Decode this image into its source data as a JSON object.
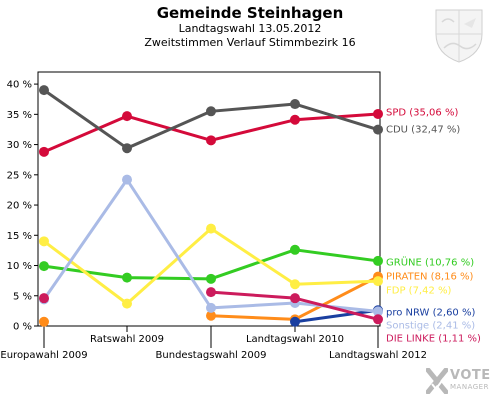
{
  "header": {
    "title": "Gemeinde Steinhagen",
    "subtitle": "Landtagswahl 13.05.2012",
    "subtitle2": "Zweitstimmen Verlauf Stimmbezirk 16"
  },
  "logo": {
    "text_main": "VOTE",
    "text_sub": "MANAGER",
    "icon": "x-check-logo-icon",
    "color": "#b8b8b8"
  },
  "crest": {
    "icon": "coat-of-arms-icon"
  },
  "chart_data": {
    "type": "line",
    "title": "Gemeinde Steinhagen",
    "x": [
      "Europawahl 2009",
      "Ratswahl 2009",
      "Bundestagswahl 2009",
      "Landtagswahl 2010",
      "Landtagswahl 2012"
    ],
    "y_ticks": [
      "0 %",
      "5 %",
      "10 %",
      "15 %",
      "20 %",
      "25 %",
      "30 %",
      "35 %",
      "40 %"
    ],
    "ylim": [
      0,
      42
    ],
    "grid": false,
    "legend": "right",
    "series": [
      {
        "name": "SPD (35,06 %)",
        "color": "#d40a3a",
        "values": [
          28.8,
          34.7,
          30.7,
          34.1,
          35.06
        ]
      },
      {
        "name": "CDU (32,47 %)",
        "color": "#555555",
        "values": [
          39.0,
          29.4,
          35.5,
          36.7,
          32.47
        ]
      },
      {
        "name": "GRÜNE (10,76 %)",
        "color": "#33cc22",
        "values": [
          9.9,
          8.0,
          7.8,
          12.6,
          10.76
        ]
      },
      {
        "name": "PIRATEN (8,16 %)",
        "color": "#ff8c1a",
        "values": [
          0.7,
          null,
          1.7,
          1.1,
          8.16
        ]
      },
      {
        "name": "FDP (7,42 %)",
        "color": "#ffee44",
        "values": [
          14.0,
          3.7,
          16.1,
          6.9,
          7.42
        ]
      },
      {
        "name": "pro NRW (2,60 %)",
        "color": "#1a3fa0",
        "values": [
          null,
          null,
          null,
          0.7,
          2.6
        ]
      },
      {
        "name": "Sonstige (2,41 %)",
        "color": "#aabbe6",
        "values": [
          4.4,
          24.2,
          3.0,
          3.8,
          2.41
        ]
      },
      {
        "name": "DIE LINKE (1,11 %)",
        "color": "#cc1b5c",
        "values": [
          4.6,
          null,
          5.6,
          4.6,
          1.11
        ]
      }
    ]
  }
}
